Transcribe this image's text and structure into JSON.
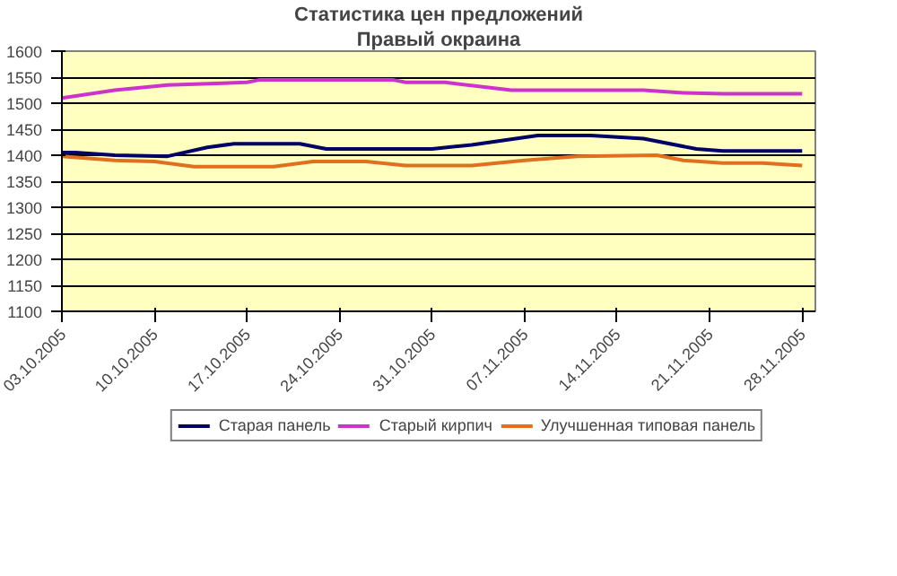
{
  "chart_data": {
    "type": "line",
    "title": "Статистика цен предложений",
    "subtitle": "Правый окраина",
    "xlim": [
      "2005-10-03",
      "2005-11-29"
    ],
    "xticks": [
      {
        "value": "2005-10-03",
        "label": "03.10.2005"
      },
      {
        "value": "2005-10-10",
        "label": "10.10.2005"
      },
      {
        "value": "2005-10-17",
        "label": "17.10.2005"
      },
      {
        "value": "2005-10-24",
        "label": "24.10.2005"
      },
      {
        "value": "2005-10-31",
        "label": "31.10.2005"
      },
      {
        "value": "2005-11-07",
        "label": "07.11.2005"
      },
      {
        "value": "2005-11-14",
        "label": "14.11.2005"
      },
      {
        "value": "2005-11-21",
        "label": "21.11.2005"
      },
      {
        "value": "2005-11-28",
        "label": "28.11.2005"
      }
    ],
    "ylim": [
      1100,
      1600
    ],
    "yticks": [
      1100,
      1150,
      1200,
      1250,
      1300,
      1350,
      1400,
      1450,
      1500,
      1550,
      1600
    ],
    "grid": "y",
    "legend": "bottom",
    "marker": "none",
    "line_style": "solid",
    "series": [
      {
        "name": "Старая панель",
        "color": "#000066",
        "x": [
          "2005-10-03",
          "2005-10-04",
          "2005-10-07",
          "2005-10-11",
          "2005-10-14",
          "2005-10-16",
          "2005-10-21",
          "2005-10-23",
          "2005-10-31",
          "2005-11-03",
          "2005-11-08",
          "2005-11-12",
          "2005-11-16",
          "2005-11-20",
          "2005-11-22",
          "2005-11-28"
        ],
        "values": [
          1405,
          1405,
          1400,
          1398,
          1415,
          1422,
          1422,
          1412,
          1412,
          1420,
          1438,
          1438,
          1432,
          1412,
          1408,
          1408
        ]
      },
      {
        "name": "Старый кирпич",
        "color": "#cc33cc",
        "x": [
          "2005-10-03",
          "2005-10-07",
          "2005-10-11",
          "2005-10-17",
          "2005-10-18",
          "2005-10-28",
          "2005-10-29",
          "2005-11-01",
          "2005-11-06",
          "2005-11-16",
          "2005-11-19",
          "2005-11-22",
          "2005-11-28"
        ],
        "values": [
          1510,
          1525,
          1535,
          1540,
          1545,
          1545,
          1540,
          1540,
          1525,
          1525,
          1520,
          1518,
          1518
        ]
      },
      {
        "name": "Улучшенная типовая панель",
        "color": "#e07020",
        "x": [
          "2005-10-03",
          "2005-10-07",
          "2005-10-10",
          "2005-10-13",
          "2005-10-19",
          "2005-10-22",
          "2005-10-26",
          "2005-10-29",
          "2005-11-03",
          "2005-11-07",
          "2005-11-11",
          "2005-11-17",
          "2005-11-19",
          "2005-11-22",
          "2005-11-25",
          "2005-11-28"
        ],
        "values": [
          1398,
          1390,
          1388,
          1378,
          1378,
          1388,
          1388,
          1380,
          1380,
          1390,
          1398,
          1400,
          1390,
          1385,
          1385,
          1380
        ]
      }
    ]
  }
}
